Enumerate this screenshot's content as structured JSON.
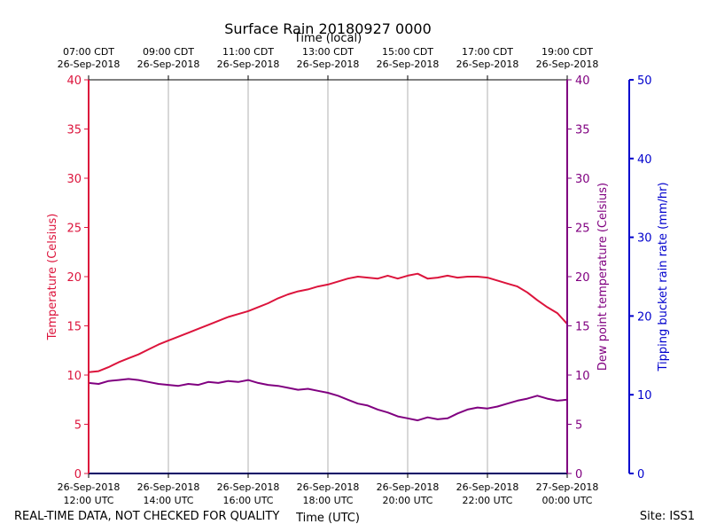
{
  "chart_data": {
    "type": "line",
    "title": "Surface Rain 20180927 0000",
    "top_axis_label": "Time (local)",
    "bottom_axis_label": "Time (UTC)",
    "top_ticks": [
      {
        "line1": "07:00 CDT",
        "line2": "26-Sep-2018",
        "hour": 0
      },
      {
        "line1": "09:00 CDT",
        "line2": "26-Sep-2018",
        "hour": 2
      },
      {
        "line1": "11:00 CDT",
        "line2": "26-Sep-2018",
        "hour": 4
      },
      {
        "line1": "13:00 CDT",
        "line2": "26-Sep-2018",
        "hour": 6
      },
      {
        "line1": "15:00 CDT",
        "line2": "26-Sep-2018",
        "hour": 8
      },
      {
        "line1": "17:00 CDT",
        "line2": "26-Sep-2018",
        "hour": 10
      },
      {
        "line1": "19:00 CDT",
        "line2": "26-Sep-2018",
        "hour": 12
      }
    ],
    "bottom_ticks": [
      {
        "line1": "26-Sep-2018",
        "line2": "12:00 UTC",
        "hour": 0
      },
      {
        "line1": "26-Sep-2018",
        "line2": "14:00 UTC",
        "hour": 2
      },
      {
        "line1": "26-Sep-2018",
        "line2": "16:00 UTC",
        "hour": 4
      },
      {
        "line1": "26-Sep-2018",
        "line2": "18:00 UTC",
        "hour": 6
      },
      {
        "line1": "26-Sep-2018",
        "line2": "20:00 UTC",
        "hour": 8
      },
      {
        "line1": "26-Sep-2018",
        "line2": "22:00 UTC",
        "hour": 10
      },
      {
        "line1": "27-Sep-2018",
        "line2": "00:00 UTC",
        "hour": 12
      }
    ],
    "xlim": [
      0,
      12
    ],
    "y_left": {
      "label": "Temperature (Celsius)",
      "lim": [
        0,
        40
      ],
      "ticks": [
        0,
        5,
        10,
        15,
        20,
        25,
        30,
        35,
        40
      ],
      "color": "#dc143c"
    },
    "y_right_inner": {
      "label": "Dew point temperature (Celsius)",
      "lim": [
        0,
        40
      ],
      "ticks": [
        0,
        5,
        10,
        15,
        20,
        25,
        30,
        35,
        40
      ],
      "color": "#800080"
    },
    "y_right_outer": {
      "label": "Tipping bucket rain rate (mm/hr)",
      "lim": [
        0,
        50
      ],
      "ticks": [
        0,
        10,
        20,
        30,
        40,
        50
      ],
      "color": "#0000cd"
    },
    "series": [
      {
        "name": "Temperature",
        "color": "#dc143c",
        "x": [
          0,
          0.25,
          0.5,
          0.75,
          1.0,
          1.25,
          1.5,
          1.75,
          2.0,
          2.25,
          2.5,
          2.75,
          3.0,
          3.25,
          3.5,
          3.75,
          4.0,
          4.25,
          4.5,
          4.75,
          5.0,
          5.25,
          5.5,
          5.75,
          6.0,
          6.25,
          6.5,
          6.75,
          7.0,
          7.25,
          7.5,
          7.75,
          8.0,
          8.25,
          8.5,
          8.75,
          9.0,
          9.25,
          9.5,
          9.75,
          10.0,
          10.25,
          10.5,
          10.75,
          11.0,
          11.25,
          11.5,
          11.75,
          12.0
        ],
        "values": [
          10.3,
          10.4,
          10.8,
          11.3,
          11.7,
          12.1,
          12.6,
          13.1,
          13.5,
          13.9,
          14.3,
          14.7,
          15.1,
          15.5,
          15.9,
          16.2,
          16.5,
          16.9,
          17.3,
          17.8,
          18.2,
          18.5,
          18.7,
          19.0,
          19.2,
          19.5,
          19.8,
          20.0,
          19.9,
          19.8,
          20.1,
          19.8,
          20.1,
          20.3,
          19.8,
          19.9,
          20.1,
          19.9,
          20.0,
          20.0,
          19.9,
          19.6,
          19.3,
          19.0,
          18.4,
          17.6,
          16.9,
          16.3,
          15.2
        ]
      },
      {
        "name": "Dew point",
        "color": "#800080",
        "x": [
          0,
          0.25,
          0.5,
          0.75,
          1.0,
          1.25,
          1.5,
          1.75,
          2.0,
          2.25,
          2.5,
          2.75,
          3.0,
          3.25,
          3.5,
          3.75,
          4.0,
          4.25,
          4.5,
          4.75,
          5.0,
          5.25,
          5.5,
          5.75,
          6.0,
          6.25,
          6.5,
          6.75,
          7.0,
          7.25,
          7.5,
          7.75,
          8.0,
          8.25,
          8.5,
          8.75,
          9.0,
          9.25,
          9.5,
          9.75,
          10.0,
          10.25,
          10.5,
          10.75,
          11.0,
          11.25,
          11.5,
          11.75,
          12.0
        ],
        "values": [
          9.2,
          9.1,
          9.4,
          9.5,
          9.6,
          9.5,
          9.3,
          9.1,
          9.0,
          8.9,
          9.1,
          9.0,
          9.3,
          9.2,
          9.4,
          9.3,
          9.5,
          9.2,
          9.0,
          8.9,
          8.7,
          8.5,
          8.6,
          8.4,
          8.2,
          7.9,
          7.5,
          7.1,
          6.9,
          6.5,
          6.2,
          5.8,
          5.6,
          5.4,
          5.7,
          5.5,
          5.6,
          6.1,
          6.5,
          6.7,
          6.6,
          6.8,
          7.1,
          7.4,
          7.6,
          7.9,
          7.6,
          7.4,
          7.5
        ]
      },
      {
        "name": "Tipping bucket rain rate",
        "color": "#0000cd",
        "x": [
          0,
          12
        ],
        "values": [
          0,
          0
        ]
      }
    ]
  },
  "footer": {
    "left": "REAL-TIME DATA, NOT CHECKED FOR QUALITY",
    "right": "Site: ISS1"
  },
  "colors": {
    "temperature": "#dc143c",
    "dewpoint": "#800080",
    "rain": "#0000cd",
    "grid": "#b0b0b0"
  }
}
